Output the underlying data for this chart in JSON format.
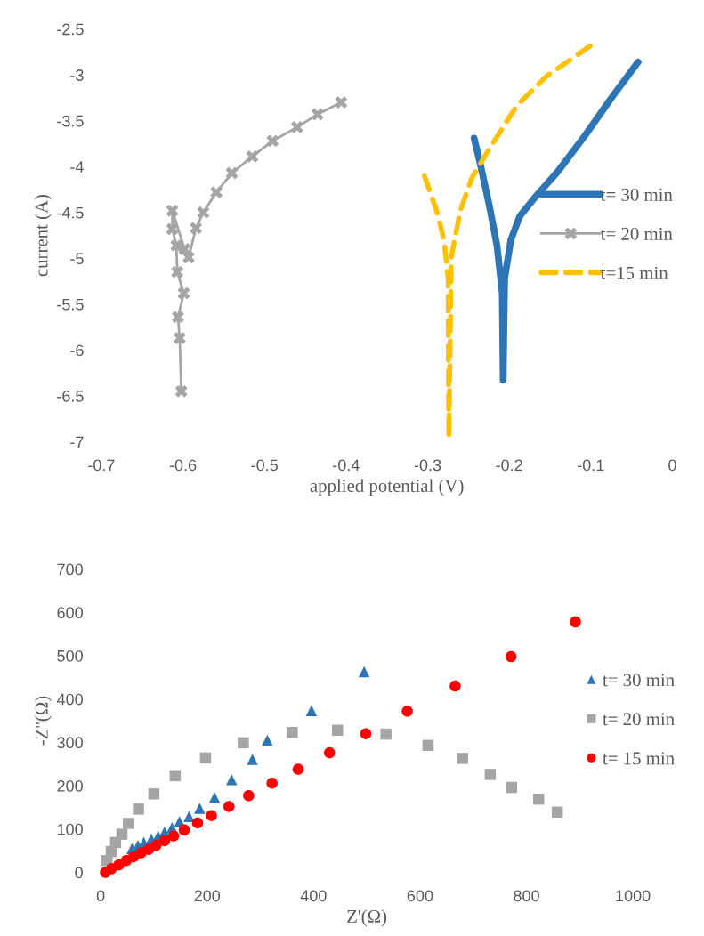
{
  "chart_data": [
    {
      "type": "line",
      "xlabel": "applied potential (V)",
      "ylabel": "current (A)",
      "xlim": [
        -0.7,
        0
      ],
      "xticks": [
        -0.7,
        -0.6,
        -0.5,
        -0.4,
        -0.3,
        -0.2,
        -0.1,
        0
      ],
      "ylim": [
        -7,
        -2.5
      ],
      "yticks": [
        -7,
        -6.5,
        -6,
        -5.5,
        -5,
        -4.5,
        -4,
        -3.5,
        -3,
        -2.5
      ],
      "grid": false,
      "legend": "right",
      "series": [
        {
          "name": "t= 30 min",
          "color": "#2e75b6",
          "line_style": "solid",
          "marker": "none",
          "x": [
            -0.243,
            -0.235,
            -0.224,
            -0.215,
            -0.2085,
            -0.2074,
            -0.2056,
            -0.198,
            -0.187,
            -0.166,
            -0.14,
            -0.107,
            -0.0746,
            -0.042
          ],
          "values": [
            -3.69,
            -3.99,
            -4.44,
            -4.86,
            -5.38,
            -6.33,
            -5.22,
            -4.8,
            -4.54,
            -4.31,
            -4.05,
            -3.66,
            -3.25,
            -2.86
          ]
        },
        {
          "name": "t= 20 min",
          "color": "#a5a5a5",
          "line_style": "solid",
          "marker": "cross",
          "x": [
            -0.602,
            -0.604,
            -0.606,
            -0.599,
            -0.607,
            -0.608,
            -0.613,
            -0.613,
            -0.598,
            -0.593,
            -0.584,
            -0.575,
            -0.559,
            -0.54,
            -0.515,
            -0.49,
            -0.46,
            -0.435,
            -0.406
          ],
          "values": [
            -6.45,
            -5.87,
            -5.64,
            -5.38,
            -5.15,
            -4.86,
            -4.68,
            -4.48,
            -4.9,
            -4.99,
            -4.67,
            -4.5,
            -4.28,
            -4.07,
            -3.89,
            -3.72,
            -3.57,
            -3.43,
            -3.3
          ]
        },
        {
          "name": "t=15 min",
          "color": "#ffc000",
          "line_style": "dashed",
          "marker": "none",
          "x": [
            -0.304,
            -0.289,
            -0.28,
            -0.2747,
            -0.2747,
            -0.274,
            -0.271,
            -0.26,
            -0.2456,
            -0.224,
            -0.191,
            -0.155,
            -0.1
          ],
          "values": [
            -4.1,
            -4.48,
            -4.8,
            -5.22,
            -5.7,
            -6.95,
            -4.99,
            -4.48,
            -4.12,
            -3.8,
            -3.34,
            -3.02,
            -2.68
          ]
        }
      ]
    },
    {
      "type": "scatter",
      "xlabel": "Z'(Ω)",
      "ylabel": "-Z''(Ω)",
      "xlim": [
        0,
        1000
      ],
      "xticks": [
        0,
        200,
        400,
        600,
        800,
        1000
      ],
      "ylim": [
        0,
        700
      ],
      "yticks": [
        0,
        100,
        200,
        300,
        400,
        500,
        600,
        700
      ],
      "grid": false,
      "legend": "right",
      "series": [
        {
          "name": "t= 30 min",
          "color": "#2e75b6",
          "marker": "triangle",
          "x": [
            59,
            70,
            81,
            95,
            108,
            120,
            134,
            148,
            166,
            186,
            214,
            246,
            285,
            313,
            396,
            495
          ],
          "values": [
            55,
            62,
            69,
            77,
            84,
            93,
            103,
            117,
            129,
            148,
            173,
            214,
            261,
            305,
            373,
            463
          ]
        },
        {
          "name": "t= 20 min",
          "color": "#a5a5a5",
          "marker": "square",
          "x": [
            12,
            20,
            28,
            40,
            52,
            71,
            100,
            140,
            197,
            268,
            360,
            445,
            536,
            615,
            680,
            732,
            772,
            823,
            858
          ],
          "values": [
            27,
            48,
            69,
            88,
            113,
            146,
            181,
            223,
            264,
            299,
            323,
            328,
            319,
            293,
            263,
            226,
            196,
            169,
            139
          ]
        },
        {
          "name": "t= 15 min",
          "color": "#ff0000",
          "marker": "circle",
          "x": [
            9,
            20,
            34,
            48,
            62,
            76,
            90,
            104,
            120,
            137,
            157,
            182,
            208,
            241,
            278,
            322,
            371,
            430,
            498,
            576,
            666,
            771,
            892
          ],
          "values": [
            0,
            8,
            17,
            27,
            36,
            45,
            53,
            62,
            73,
            84,
            98,
            114,
            131,
            152,
            177,
            206,
            238,
            276,
            320,
            372,
            430,
            498,
            578
          ]
        }
      ]
    }
  ]
}
